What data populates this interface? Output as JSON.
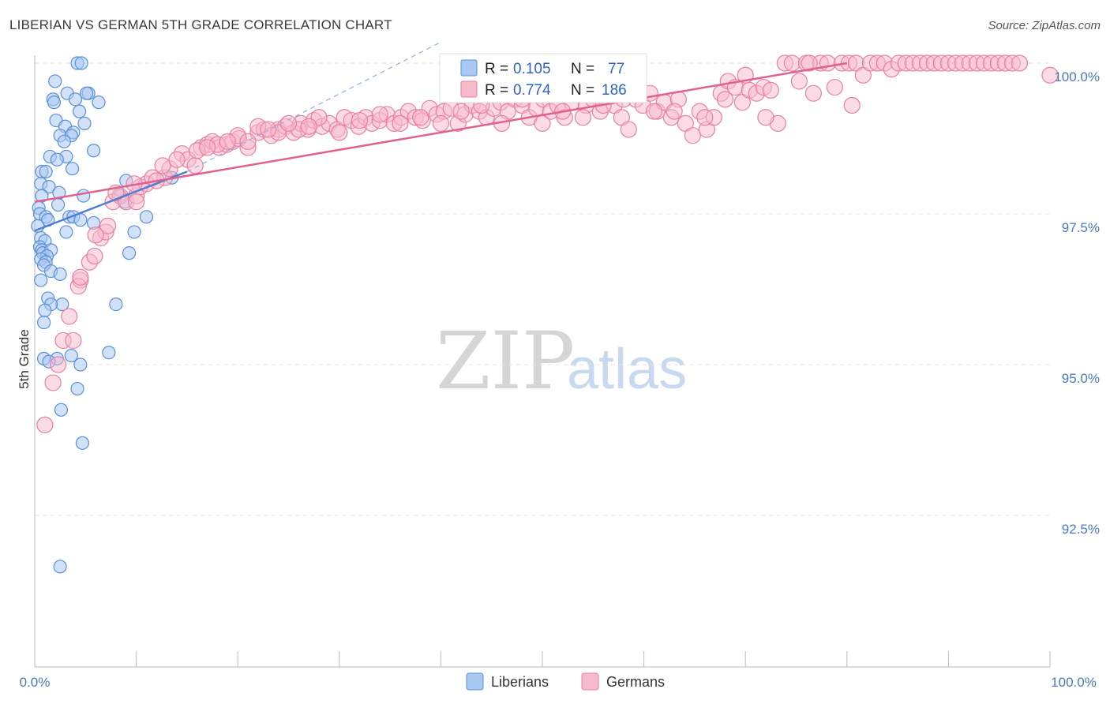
{
  "title": "LIBERIAN VS GERMAN 5TH GRADE CORRELATION CHART",
  "source": "Source: ZipAtlas.com",
  "watermark": {
    "zip": "ZIP",
    "atlas": "atlas"
  },
  "legend": {
    "r_label": "R =",
    "n_label": "N =",
    "series": [
      {
        "name": "Liberians",
        "r": "0.105",
        "n": "77",
        "fill": "#a9c8f2",
        "stroke": "#5b8fd6"
      },
      {
        "name": "Germans",
        "r": "0.774",
        "n": "186",
        "fill": "#f7b9cc",
        "stroke": "#e87fa2"
      }
    ]
  },
  "chart_data": {
    "type": "scatter",
    "title": "LIBERIAN VS GERMAN 5TH GRADE CORRELATION CHART",
    "xlabel": "",
    "ylabel": "5th Grade",
    "xlim": [
      0,
      100
    ],
    "ylim": [
      90.1,
      100.5
    ],
    "x_tick_labels": [
      "0.0%",
      "100.0%"
    ],
    "y_ticks": [
      100.0,
      97.5,
      95.0,
      92.5
    ],
    "y_tick_labels": [
      "100.0%",
      "97.5%",
      "95.0%",
      "92.5%"
    ],
    "grid": true,
    "colors": {
      "liberians": "#4a7fd4",
      "germans": "#e0608f",
      "grid": "#e3e3e3",
      "axis": "#bbbbbb"
    },
    "series": [
      {
        "name": "Liberians",
        "trend": {
          "x0": 0,
          "y0": 97.22,
          "x1": 15,
          "y1": 98.2
        },
        "trend_dashed": {
          "x0": 15,
          "y0": 98.2,
          "x1": 40,
          "y1": 100.35
        },
        "points": [
          [
            4.2,
            100
          ],
          [
            4.6,
            100
          ],
          [
            2.0,
            99.7
          ],
          [
            3.2,
            99.5
          ],
          [
            5.3,
            99.5
          ],
          [
            5.1,
            99.5
          ],
          [
            1.8,
            99.4
          ],
          [
            1.9,
            99.35
          ],
          [
            4.0,
            99.4
          ],
          [
            6.3,
            99.35
          ],
          [
            4.4,
            99.2
          ],
          [
            2.1,
            99.05
          ],
          [
            4.9,
            99.0
          ],
          [
            3.0,
            98.95
          ],
          [
            2.5,
            98.8
          ],
          [
            3.8,
            98.85
          ],
          [
            3.6,
            98.8
          ],
          [
            2.9,
            98.7
          ],
          [
            5.8,
            98.55
          ],
          [
            1.5,
            98.45
          ],
          [
            3.1,
            98.45
          ],
          [
            2.2,
            98.4
          ],
          [
            3.7,
            98.25
          ],
          [
            0.7,
            98.2
          ],
          [
            1.1,
            98.2
          ],
          [
            9.0,
            98.05
          ],
          [
            13.5,
            98.1
          ],
          [
            0.6,
            98.0
          ],
          [
            1.4,
            97.95
          ],
          [
            0.7,
            97.8
          ],
          [
            2.4,
            97.85
          ],
          [
            4.8,
            97.8
          ],
          [
            8.4,
            97.8
          ],
          [
            8.9,
            97.7
          ],
          [
            0.4,
            97.6
          ],
          [
            2.3,
            97.65
          ],
          [
            0.5,
            97.5
          ],
          [
            1.1,
            97.45
          ],
          [
            3.4,
            97.45
          ],
          [
            3.8,
            97.45
          ],
          [
            1.3,
            97.4
          ],
          [
            4.5,
            97.4
          ],
          [
            11.0,
            97.45
          ],
          [
            5.8,
            97.35
          ],
          [
            3.1,
            97.2
          ],
          [
            9.8,
            97.2
          ],
          [
            0.6,
            97.1
          ],
          [
            1.0,
            97.05
          ],
          [
            0.5,
            96.95
          ],
          [
            0.7,
            96.9
          ],
          [
            0.8,
            96.85
          ],
          [
            1.6,
            96.9
          ],
          [
            1.2,
            96.8
          ],
          [
            9.3,
            96.85
          ],
          [
            0.6,
            96.75
          ],
          [
            1.1,
            96.7
          ],
          [
            0.9,
            96.65
          ],
          [
            1.6,
            96.55
          ],
          [
            2.5,
            96.5
          ],
          [
            0.6,
            96.4
          ],
          [
            1.3,
            96.1
          ],
          [
            2.7,
            96.0
          ],
          [
            8.0,
            96.0
          ],
          [
            1.6,
            96.0
          ],
          [
            1.0,
            95.9
          ],
          [
            0.9,
            95.7
          ],
          [
            0.9,
            95.1
          ],
          [
            2.2,
            95.1
          ],
          [
            3.6,
            95.15
          ],
          [
            7.3,
            95.2
          ],
          [
            4.5,
            95.0
          ],
          [
            4.2,
            94.6
          ],
          [
            2.6,
            94.25
          ],
          [
            4.7,
            93.7
          ],
          [
            2.5,
            91.65
          ],
          [
            1.4,
            95.05
          ],
          [
            0.3,
            97.3
          ]
        ]
      },
      {
        "name": "Germans",
        "trend": {
          "x0": 0,
          "y0": 97.7,
          "x1": 80,
          "y1": 100
        },
        "points": [
          [
            1.0,
            94.0
          ],
          [
            1.8,
            94.7
          ],
          [
            2.3,
            95.0
          ],
          [
            2.8,
            95.4
          ],
          [
            3.8,
            95.4
          ],
          [
            3.4,
            95.8
          ],
          [
            4.5,
            96.4
          ],
          [
            4.3,
            96.3
          ],
          [
            5.4,
            96.7
          ],
          [
            5.9,
            96.8
          ],
          [
            6.5,
            97.1
          ],
          [
            7.0,
            97.2
          ],
          [
            7.2,
            97.3
          ],
          [
            7.7,
            97.7
          ],
          [
            8.4,
            97.8
          ],
          [
            9.0,
            97.7
          ],
          [
            10.0,
            97.8
          ],
          [
            10.4,
            97.95
          ],
          [
            11.0,
            98.0
          ],
          [
            11.6,
            98.1
          ],
          [
            12.8,
            98.1
          ],
          [
            9.8,
            98.0
          ],
          [
            13.3,
            98.25
          ],
          [
            12.6,
            98.3
          ],
          [
            14.5,
            98.5
          ],
          [
            15.1,
            98.4
          ],
          [
            15.8,
            98.3
          ],
          [
            16.4,
            98.6
          ],
          [
            17.0,
            98.65
          ],
          [
            17.5,
            98.7
          ],
          [
            18.2,
            98.6
          ],
          [
            18.9,
            98.65
          ],
          [
            19.5,
            98.7
          ],
          [
            20.1,
            98.75
          ],
          [
            21.0,
            98.6
          ],
          [
            22.0,
            98.85
          ],
          [
            22.6,
            98.9
          ],
          [
            23.3,
            98.8
          ],
          [
            24.0,
            98.9
          ],
          [
            24.7,
            98.95
          ],
          [
            25.5,
            98.85
          ],
          [
            26.2,
            99.0
          ],
          [
            26.9,
            98.9
          ],
          [
            27.5,
            99.05
          ],
          [
            28.3,
            98.95
          ],
          [
            29.0,
            99.0
          ],
          [
            29.8,
            98.9
          ],
          [
            30.5,
            99.1
          ],
          [
            31.2,
            99.05
          ],
          [
            31.9,
            98.95
          ],
          [
            32.6,
            99.1
          ],
          [
            33.2,
            99.0
          ],
          [
            34.0,
            99.05
          ],
          [
            34.7,
            99.15
          ],
          [
            35.4,
            99.0
          ],
          [
            36.1,
            99.1
          ],
          [
            36.8,
            99.2
          ],
          [
            37.5,
            99.1
          ],
          [
            38.2,
            99.05
          ],
          [
            38.9,
            99.25
          ],
          [
            39.6,
            99.15
          ],
          [
            40.3,
            99.2
          ],
          [
            41.0,
            99.25
          ],
          [
            41.7,
            99.0
          ],
          [
            42.4,
            99.15
          ],
          [
            43.1,
            99.3
          ],
          [
            43.8,
            99.2
          ],
          [
            44.5,
            99.1
          ],
          [
            45.2,
            99.25
          ],
          [
            45.9,
            99.35
          ],
          [
            46.6,
            99.2
          ],
          [
            47.3,
            99.4
          ],
          [
            48.0,
            99.3
          ],
          [
            48.7,
            99.1
          ],
          [
            49.4,
            99.25
          ],
          [
            50.1,
            99.4
          ],
          [
            50.8,
            99.2
          ],
          [
            51.5,
            99.3
          ],
          [
            52.2,
            99.1
          ],
          [
            52.9,
            99.35
          ],
          [
            53.6,
            99.5
          ],
          [
            54.3,
            99.3
          ],
          [
            55.0,
            99.4
          ],
          [
            55.7,
            99.2
          ],
          [
            56.4,
            99.5
          ],
          [
            57.1,
            99.3
          ],
          [
            57.8,
            99.1
          ],
          [
            58.5,
            98.9
          ],
          [
            59.2,
            99.4
          ],
          [
            59.9,
            99.3
          ],
          [
            60.6,
            99.5
          ],
          [
            61.3,
            99.2
          ],
          [
            62.0,
            99.35
          ],
          [
            62.7,
            99.1
          ],
          [
            63.4,
            99.4
          ],
          [
            64.1,
            99.0
          ],
          [
            64.8,
            98.8
          ],
          [
            65.5,
            99.2
          ],
          [
            66.2,
            98.9
          ],
          [
            66.9,
            99.1
          ],
          [
            67.6,
            99.5
          ],
          [
            68.3,
            99.7
          ],
          [
            69.0,
            99.6
          ],
          [
            69.7,
            99.35
          ],
          [
            70.4,
            99.55
          ],
          [
            71.1,
            99.5
          ],
          [
            71.8,
            99.6
          ],
          [
            72.5,
            99.55
          ],
          [
            73.2,
            99.0
          ],
          [
            73.9,
            100
          ],
          [
            74.6,
            100
          ],
          [
            75.3,
            99.7
          ],
          [
            76.0,
            100
          ],
          [
            76.7,
            99.5
          ],
          [
            77.4,
            100
          ],
          [
            78.1,
            100
          ],
          [
            78.8,
            99.6
          ],
          [
            79.5,
            100
          ],
          [
            80.2,
            100
          ],
          [
            80.9,
            100
          ],
          [
            81.6,
            99.8
          ],
          [
            82.3,
            100
          ],
          [
            83.0,
            100
          ],
          [
            83.7,
            100
          ],
          [
            84.4,
            99.9
          ],
          [
            85.1,
            100
          ],
          [
            85.8,
            100
          ],
          [
            86.5,
            100
          ],
          [
            87.2,
            100
          ],
          [
            87.9,
            100
          ],
          [
            88.6,
            100
          ],
          [
            89.3,
            100
          ],
          [
            90.0,
            100
          ],
          [
            90.7,
            100
          ],
          [
            91.4,
            100
          ],
          [
            92.1,
            100
          ],
          [
            92.8,
            100
          ],
          [
            93.5,
            100
          ],
          [
            94.2,
            100
          ],
          [
            94.9,
            100
          ],
          [
            95.6,
            100
          ],
          [
            96.3,
            100
          ],
          [
            97.0,
            100
          ],
          [
            100.0,
            99.8
          ],
          [
            80.5,
            99.3
          ],
          [
            76.3,
            100
          ],
          [
            72.0,
            99.1
          ],
          [
            70.0,
            99.8
          ],
          [
            68.0,
            99.4
          ],
          [
            66.0,
            99.1
          ],
          [
            63.0,
            99.2
          ],
          [
            61.0,
            99.2
          ],
          [
            58.0,
            99.4
          ],
          [
            56.0,
            99.3
          ],
          [
            54.0,
            99.1
          ],
          [
            52.0,
            99.2
          ],
          [
            50.0,
            99.0
          ],
          [
            48.0,
            99.4
          ],
          [
            46.0,
            99.0
          ],
          [
            44.0,
            99.3
          ],
          [
            42.0,
            99.2
          ],
          [
            40.0,
            99.0
          ],
          [
            38.0,
            99.1
          ],
          [
            36.0,
            99.0
          ],
          [
            34.0,
            99.15
          ],
          [
            32.0,
            99.05
          ],
          [
            30.0,
            98.85
          ],
          [
            28.0,
            99.1
          ],
          [
            26.0,
            98.9
          ],
          [
            24.0,
            98.85
          ],
          [
            22.0,
            98.95
          ],
          [
            20.0,
            98.8
          ],
          [
            18.0,
            98.65
          ],
          [
            16.0,
            98.55
          ],
          [
            14.0,
            98.4
          ],
          [
            12.0,
            98.05
          ],
          [
            10.0,
            97.7
          ],
          [
            8.0,
            97.85
          ],
          [
            6.0,
            97.15
          ],
          [
            4.5,
            96.45
          ],
          [
            17.0,
            98.6
          ],
          [
            19.0,
            98.7
          ],
          [
            21.0,
            98.7
          ],
          [
            23.0,
            98.9
          ],
          [
            25.0,
            99.0
          ],
          [
            27.0,
            98.95
          ]
        ]
      }
    ]
  }
}
